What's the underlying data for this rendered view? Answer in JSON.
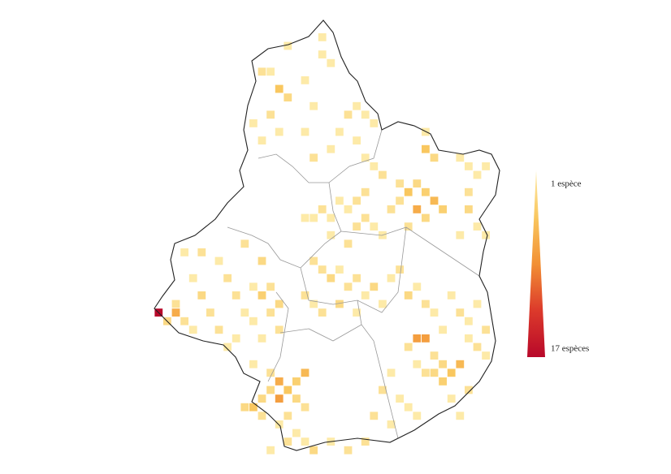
{
  "map": {
    "legend": {
      "min": 1,
      "max": 17,
      "min_label": "1 espèce",
      "max_label": "17 espèces",
      "colors": [
        "#fdeaa8",
        "#f9c75f",
        "#f29034",
        "#dc3a2b",
        "#b8082a"
      ]
    },
    "cells": [
      [
        19,
        1,
        1
      ],
      [
        15,
        2,
        1
      ],
      [
        19,
        3,
        1
      ],
      [
        20,
        4,
        1
      ],
      [
        12,
        5,
        2
      ],
      [
        13,
        5,
        1
      ],
      [
        17,
        6,
        1
      ],
      [
        14,
        7,
        5
      ],
      [
        15,
        8,
        3
      ],
      [
        18,
        9,
        1
      ],
      [
        23,
        9,
        1
      ],
      [
        13,
        10,
        2
      ],
      [
        22,
        10,
        2
      ],
      [
        24,
        10,
        1
      ],
      [
        11,
        11,
        1
      ],
      [
        14,
        12,
        1
      ],
      [
        17,
        12,
        1
      ],
      [
        21,
        12,
        1
      ],
      [
        25,
        11,
        1
      ],
      [
        12,
        13,
        1
      ],
      [
        20,
        14,
        1
      ],
      [
        23,
        13,
        1
      ],
      [
        18,
        15,
        2
      ],
      [
        24,
        15,
        1
      ],
      [
        31,
        12,
        1
      ],
      [
        31,
        14,
        5
      ],
      [
        32,
        15,
        3
      ],
      [
        35,
        15,
        1
      ],
      [
        36,
        16,
        1
      ],
      [
        38,
        16,
        1
      ],
      [
        37,
        17,
        1
      ],
      [
        25,
        16,
        1
      ],
      [
        26,
        17,
        2
      ],
      [
        28,
        18,
        2
      ],
      [
        30,
        18,
        3
      ],
      [
        29,
        19,
        5
      ],
      [
        31,
        19,
        4
      ],
      [
        32,
        20,
        6
      ],
      [
        30,
        21,
        7
      ],
      [
        33,
        21,
        4
      ],
      [
        31,
        22,
        3
      ],
      [
        28,
        20,
        2
      ],
      [
        27,
        21,
        2
      ],
      [
        24,
        19,
        2
      ],
      [
        23,
        20,
        2
      ],
      [
        22,
        21,
        1
      ],
      [
        21,
        20,
        1
      ],
      [
        20,
        22,
        1
      ],
      [
        19,
        21,
        2
      ],
      [
        18,
        22,
        1
      ],
      [
        17,
        22,
        1
      ],
      [
        24,
        22,
        2
      ],
      [
        25,
        23,
        1
      ],
      [
        23,
        23,
        2
      ],
      [
        36,
        19,
        2
      ],
      [
        36,
        21,
        3
      ],
      [
        37,
        23,
        1
      ],
      [
        35,
        24,
        1
      ],
      [
        38,
        24,
        1
      ],
      [
        26,
        24,
        1
      ],
      [
        29,
        23,
        2
      ],
      [
        20,
        24,
        1
      ],
      [
        22,
        25,
        2
      ],
      [
        18,
        27,
        2
      ],
      [
        19,
        28,
        2
      ],
      [
        20,
        29,
        3
      ],
      [
        21,
        28,
        1
      ],
      [
        22,
        30,
        2
      ],
      [
        23,
        29,
        2
      ],
      [
        24,
        31,
        1
      ],
      [
        25,
        30,
        3
      ],
      [
        26,
        32,
        1
      ],
      [
        17,
        31,
        2
      ],
      [
        18,
        32,
        1
      ],
      [
        19,
        33,
        2
      ],
      [
        21,
        32,
        3
      ],
      [
        23,
        33,
        1
      ],
      [
        27,
        29,
        1
      ],
      [
        28,
        28,
        2
      ],
      [
        29,
        31,
        3
      ],
      [
        30,
        30,
        1
      ],
      [
        31,
        32,
        2
      ],
      [
        32,
        33,
        1
      ],
      [
        34,
        31,
        1
      ],
      [
        35,
        33,
        2
      ],
      [
        36,
        34,
        1
      ],
      [
        37,
        32,
        1
      ],
      [
        38,
        35,
        2
      ],
      [
        33,
        35,
        1
      ],
      [
        3,
        26,
        1
      ],
      [
        5,
        26,
        2
      ],
      [
        7,
        27,
        1
      ],
      [
        10,
        25,
        2
      ],
      [
        12,
        27,
        3
      ],
      [
        4,
        29,
        1
      ],
      [
        8,
        29,
        2
      ],
      [
        11,
        30,
        1
      ],
      [
        13,
        30,
        2
      ],
      [
        5,
        31,
        3
      ],
      [
        9,
        31,
        2
      ],
      [
        12,
        31,
        4
      ],
      [
        14,
        32,
        3
      ],
      [
        2,
        32,
        2
      ],
      [
        6,
        33,
        2
      ],
      [
        10,
        33,
        1
      ],
      [
        13,
        33,
        2
      ],
      [
        1,
        34,
        3
      ],
      [
        3,
        34,
        2
      ],
      [
        0,
        33,
        17
      ],
      [
        2,
        33,
        7
      ],
      [
        4,
        35,
        1
      ],
      [
        7,
        35,
        2
      ],
      [
        9,
        36,
        1
      ],
      [
        11,
        34,
        1
      ],
      [
        14,
        35,
        2
      ],
      [
        8,
        37,
        1
      ],
      [
        12,
        36,
        1
      ],
      [
        11,
        39,
        1
      ],
      [
        13,
        40,
        2
      ],
      [
        14,
        41,
        7
      ],
      [
        15,
        42,
        5
      ],
      [
        16,
        41,
        4
      ],
      [
        17,
        40,
        6
      ],
      [
        16,
        43,
        3
      ],
      [
        14,
        43,
        8
      ],
      [
        13,
        42,
        3
      ],
      [
        12,
        43,
        3
      ],
      [
        11,
        44,
        5
      ],
      [
        10,
        44,
        3
      ],
      [
        12,
        45,
        2
      ],
      [
        15,
        45,
        2
      ],
      [
        17,
        44,
        2
      ],
      [
        14,
        46,
        1
      ],
      [
        16,
        47,
        1
      ],
      [
        15,
        48,
        2
      ],
      [
        17,
        48,
        1
      ],
      [
        18,
        49,
        3
      ],
      [
        20,
        48,
        1
      ],
      [
        22,
        49,
        2
      ],
      [
        24,
        48,
        2
      ],
      [
        13,
        49,
        1
      ],
      [
        30,
        36,
        8
      ],
      [
        31,
        36,
        8
      ],
      [
        29,
        37,
        2
      ],
      [
        32,
        38,
        2
      ],
      [
        33,
        39,
        3
      ],
      [
        34,
        40,
        5
      ],
      [
        33,
        41,
        4
      ],
      [
        32,
        40,
        3
      ],
      [
        35,
        39,
        6
      ],
      [
        31,
        40,
        2
      ],
      [
        36,
        42,
        2
      ],
      [
        34,
        43,
        1
      ],
      [
        30,
        39,
        1
      ],
      [
        37,
        37,
        2
      ],
      [
        38,
        38,
        1
      ],
      [
        36,
        36,
        1
      ],
      [
        27,
        40,
        1
      ],
      [
        26,
        42,
        2
      ],
      [
        28,
        43,
        1
      ],
      [
        29,
        44,
        1
      ],
      [
        25,
        45,
        2
      ],
      [
        27,
        46,
        1
      ],
      [
        30,
        45,
        1
      ],
      [
        35,
        45,
        1
      ]
    ]
  }
}
